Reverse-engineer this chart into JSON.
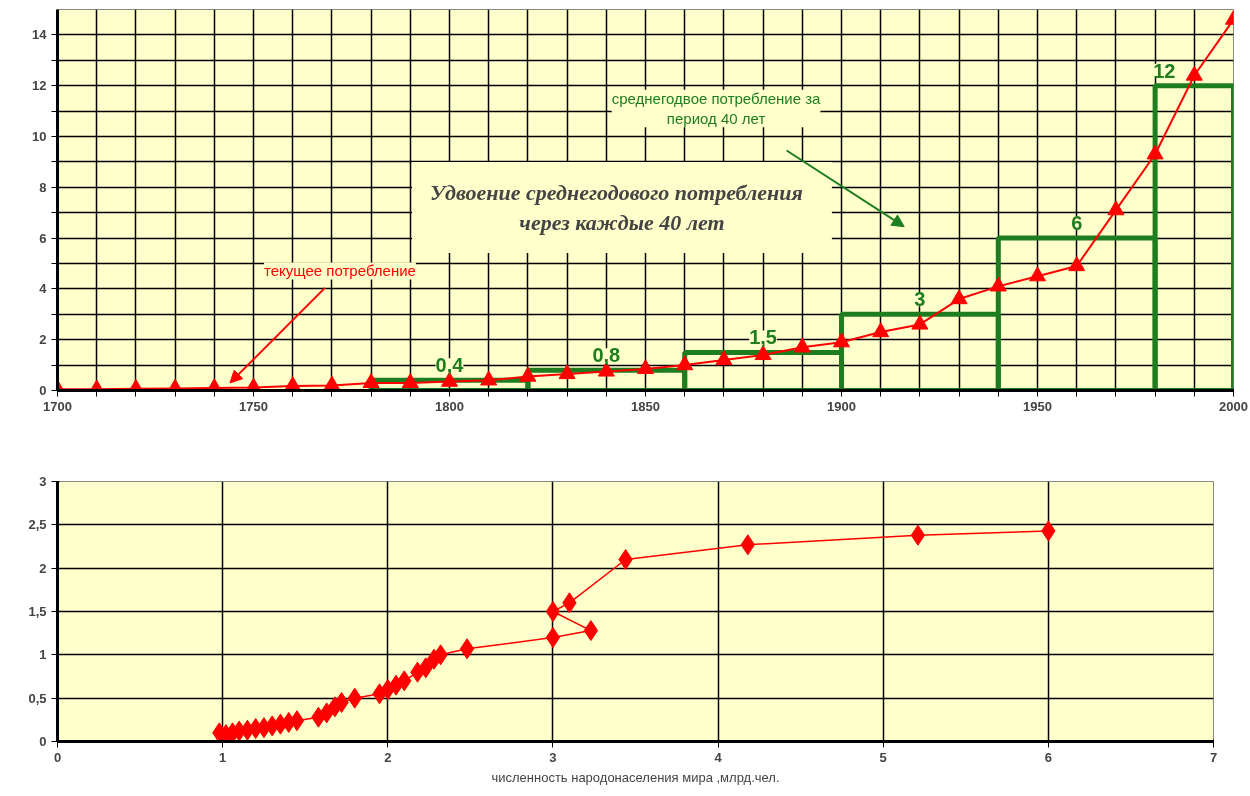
{
  "chart_data": [
    {
      "type": "line",
      "title": "Удвоение  среднегодового  потребления\nчерез каждые 40 лет",
      "xlim": [
        1700,
        2000
      ],
      "ylim": [
        0,
        15
      ],
      "xticks": [
        1700,
        {
          "value": 1710,
          "label": null
        },
        {
          "value": 1720,
          "label": null
        },
        {
          "value": 1730,
          "label": null
        },
        {
          "value": 1740,
          "label": null
        },
        1750,
        {
          "value": 1760,
          "label": null
        },
        {
          "value": 1770,
          "label": null
        },
        {
          "value": 1780,
          "label": null
        },
        {
          "value": 1790,
          "label": null
        },
        1800,
        {
          "value": 1810,
          "label": null
        },
        {
          "value": 1820,
          "label": null
        },
        {
          "value": 1830,
          "label": null
        },
        {
          "value": 1840,
          "label": null
        },
        1850,
        {
          "value": 1860,
          "label": null
        },
        {
          "value": 1870,
          "label": null
        },
        {
          "value": 1880,
          "label": null
        },
        {
          "value": 1890,
          "label": null
        },
        1900,
        {
          "value": 1910,
          "label": null
        },
        {
          "value": 1920,
          "label": null
        },
        {
          "value": 1930,
          "label": null
        },
        {
          "value": 1940,
          "label": null
        },
        1950,
        {
          "value": 1960,
          "label": null
        },
        {
          "value": 1970,
          "label": null
        },
        {
          "value": 1980,
          "label": null
        },
        {
          "value": 1990,
          "label": null
        },
        2000
      ],
      "yticks": [
        0,
        {
          "value": 1,
          "label": null
        },
        2,
        {
          "value": 3,
          "label": null
        },
        4,
        {
          "value": 5,
          "label": null
        },
        6,
        {
          "value": 7,
          "label": null
        },
        8,
        {
          "value": 9,
          "label": null
        },
        10,
        {
          "value": 11,
          "label": null
        },
        12,
        {
          "value": 13,
          "label": null
        },
        14
      ],
      "grid": true,
      "marker": "triangle",
      "series": [
        {
          "color": "#ff0000",
          "x": [
            1700,
            1710,
            1720,
            1730,
            1740,
            1750,
            1760,
            1770,
            1780,
            1790,
            1800,
            1810,
            1820,
            1830,
            1840,
            1850,
            1860,
            1870,
            1880,
            1890,
            1900,
            1910,
            1920,
            1930,
            1940,
            1950,
            1960,
            1970,
            1980,
            1990,
            2000
          ],
          "values": [
            0.05,
            0.05,
            0.07,
            0.08,
            0.1,
            0.12,
            0.18,
            0.2,
            0.3,
            0.3,
            0.35,
            0.4,
            0.55,
            0.65,
            0.75,
            0.85,
            1.0,
            1.2,
            1.4,
            1.7,
            1.9,
            2.3,
            2.6,
            3.6,
            4.1,
            4.5,
            4.9,
            7.1,
            9.3,
            12.4,
            14.6
          ]
        },
        {
          "type": "histogram",
          "color": "#1e7d1e",
          "bins": [
            1780,
            1820,
            1860,
            1900,
            1940,
            1980,
            2000
          ],
          "values": [
            0.4,
            0.8,
            1.5,
            3,
            6,
            12
          ],
          "value_labels": [
            "0,4",
            "0,8",
            "1,5",
            "3",
            "6",
            "12"
          ]
        }
      ],
      "annotations": [
        {
          "text": "текущее потребление",
          "x": 1744,
          "y": 0.3
        },
        "среднегодвое потребление за\nпериод 40 лет"
      ]
    },
    {
      "type": "line",
      "xlabel": "численность народонаселения мира ,млрд.чел.",
      "xlim": [
        0,
        7
      ],
      "ylim": [
        0,
        3
      ],
      "xticks": [
        0,
        1,
        2,
        3,
        4,
        5,
        6,
        7
      ],
      "yticks": [
        0,
        {
          "value": 0.5,
          "label": "0,5"
        },
        1,
        {
          "value": 1.5,
          "label": "1,5"
        },
        2,
        {
          "value": 2.5,
          "label": "2,5"
        },
        3
      ],
      "grid": true,
      "marker": "diamond",
      "series": [
        {
          "color": "#ff0000",
          "x": [
            0.98,
            1.02,
            1.06,
            1.1,
            1.15,
            1.2,
            1.25,
            1.3,
            1.35,
            1.4,
            1.45,
            1.58,
            1.63,
            1.68,
            1.72,
            1.8,
            1.95,
            2.0,
            2.05,
            2.1,
            2.18,
            2.23,
            2.28,
            2.32,
            2.48,
            3.0,
            3.23,
            3.0,
            3.1,
            3.44,
            4.18,
            5.21,
            6.0
          ],
          "values": [
            0.1,
            0.08,
            0.1,
            0.12,
            0.13,
            0.15,
            0.16,
            0.18,
            0.2,
            0.22,
            0.24,
            0.28,
            0.33,
            0.4,
            0.45,
            0.5,
            0.55,
            0.6,
            0.65,
            0.7,
            0.8,
            0.85,
            0.95,
            1.0,
            1.07,
            1.2,
            1.28,
            1.5,
            1.6,
            2.1,
            2.27,
            2.38,
            2.43
          ]
        }
      ]
    }
  ]
}
